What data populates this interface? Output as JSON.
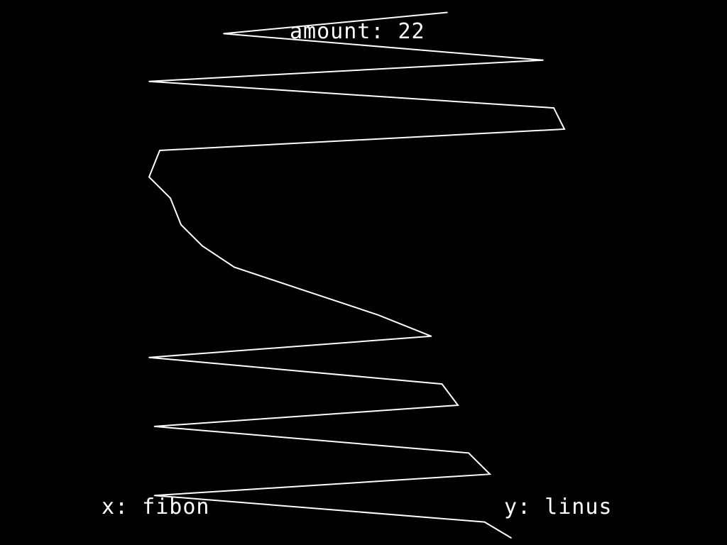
{
  "title": {
    "prefix": "amount:",
    "amount": "22",
    "text": "amount: 22"
  },
  "x_axis": {
    "text": "x: fibon",
    "name": "fibon"
  },
  "y_axis": {
    "text": "y: linus",
    "name": "linus"
  },
  "colors": {
    "background": "#000000",
    "line": "#ffffff",
    "text": "#ffffff"
  },
  "chart_data": {
    "type": "line",
    "title": "amount: 22",
    "xlabel": "x: fibon",
    "ylabel": "y: linus",
    "grid": false,
    "legend": "none",
    "xlim": [
      0,
      1
    ],
    "ylim": [
      0,
      1
    ],
    "x": [
      0.68,
      0.26,
      0.86,
      0.12,
      0.88,
      0.9,
      0.14,
      0.12,
      0.16,
      0.18,
      0.22,
      0.28,
      0.4,
      0.55,
      0.65,
      0.12,
      0.67,
      0.7,
      0.13,
      0.72,
      0.76,
      0.13,
      0.75,
      0.8
    ],
    "y": [
      0.99,
      0.95,
      0.9,
      0.86,
      0.81,
      0.77,
      0.73,
      0.68,
      0.64,
      0.59,
      0.55,
      0.51,
      0.47,
      0.42,
      0.38,
      0.34,
      0.29,
      0.25,
      0.21,
      0.16,
      0.12,
      0.08,
      0.03,
      0.0
    ]
  }
}
